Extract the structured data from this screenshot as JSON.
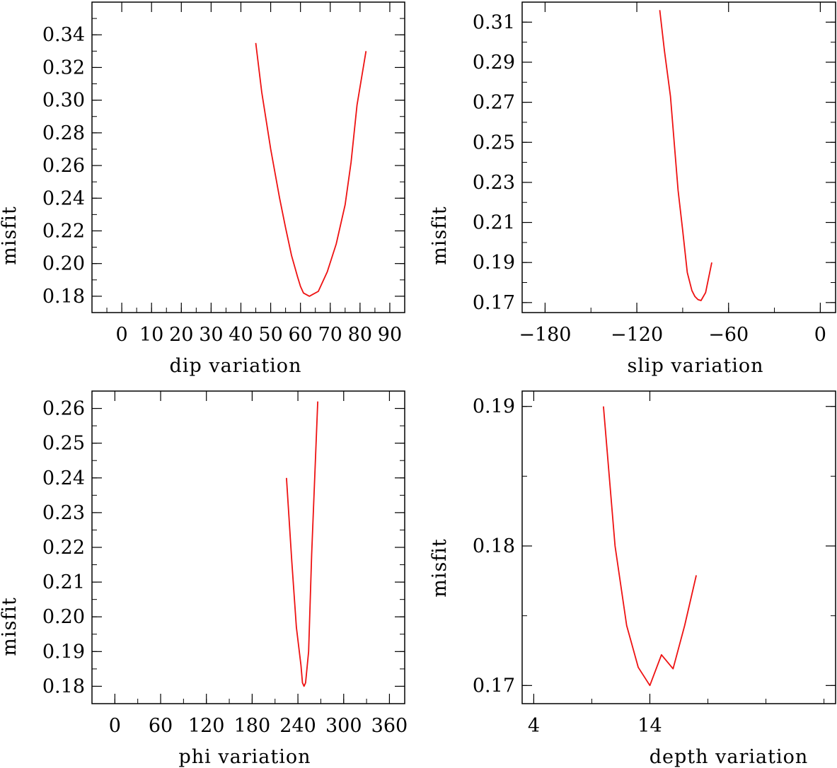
{
  "line_color": "#ee1111",
  "chart_data": [
    {
      "type": "line",
      "xlabel": "dip    variation",
      "ylabel": "misfit",
      "xlim": [
        -10,
        95
      ],
      "ylim": [
        0.17,
        0.36
      ],
      "xticks": [
        0,
        10,
        20,
        30,
        40,
        50,
        60,
        70,
        80,
        90
      ],
      "xtick_labels": [
        "0",
        "10",
        "20",
        "30",
        "40",
        "50",
        "60",
        "70",
        "80",
        "90"
      ],
      "yticks": [
        0.18,
        0.2,
        0.22,
        0.24,
        0.26,
        0.28,
        0.3,
        0.32,
        0.34
      ],
      "ytick_labels": [
        "0.18",
        "0.20",
        "0.22",
        "0.24",
        "0.26",
        "0.28",
        "0.30",
        "0.32",
        "0.34"
      ],
      "series": [
        {
          "name": "dip",
          "x": [
            45,
            47,
            50,
            53,
            55,
            57,
            59,
            60,
            61,
            63,
            64,
            66,
            69,
            72,
            75,
            77,
            79,
            82
          ],
          "y": [
            0.335,
            0.305,
            0.27,
            0.24,
            0.222,
            0.205,
            0.192,
            0.186,
            0.182,
            0.18,
            0.181,
            0.183,
            0.195,
            0.212,
            0.236,
            0.262,
            0.297,
            0.33
          ]
        }
      ]
    },
    {
      "type": "line",
      "xlabel": "slip   variation",
      "ylabel": "misfit",
      "xlim": [
        -195,
        10
      ],
      "ylim": [
        0.165,
        0.32
      ],
      "xticks": [
        -180,
        -120,
        -60,
        0
      ],
      "xtick_labels": [
        "−180",
        "−120",
        "−60",
        "0"
      ],
      "yticks": [
        0.17,
        0.19,
        0.21,
        0.23,
        0.25,
        0.27,
        0.29,
        0.31
      ],
      "ytick_labels": [
        "0.17",
        "0.19",
        "0.21",
        "0.23",
        "0.25",
        "0.27",
        "0.29",
        "0.31"
      ],
      "series": [
        {
          "name": "slip",
          "x": [
            -105,
            -102,
            -98,
            -93,
            -90,
            -87,
            -84,
            -82,
            -80,
            -78,
            -75,
            -71
          ],
          "y": [
            0.316,
            0.296,
            0.273,
            0.226,
            0.206,
            0.185,
            0.176,
            0.173,
            0.1715,
            0.171,
            0.175,
            0.19
          ]
        }
      ]
    },
    {
      "type": "line",
      "xlabel": "phi    variation",
      "ylabel": "misfit",
      "xlim": [
        -30,
        380
      ],
      "ylim": [
        0.175,
        0.265
      ],
      "xticks": [
        0,
        60,
        120,
        180,
        240,
        300,
        360
      ],
      "xtick_labels": [
        "0",
        "60",
        "120",
        "180",
        "240",
        "300",
        "360"
      ],
      "yticks": [
        0.18,
        0.19,
        0.2,
        0.21,
        0.22,
        0.23,
        0.24,
        0.25,
        0.26
      ],
      "ytick_labels": [
        "0.18",
        "0.19",
        "0.20",
        "0.21",
        "0.22",
        "0.23",
        "0.24",
        "0.25",
        "0.26"
      ],
      "series": [
        {
          "name": "phi",
          "x": [
            225,
            232,
            238,
            244,
            246,
            248,
            250,
            254,
            258,
            266
          ],
          "y": [
            0.24,
            0.216,
            0.197,
            0.186,
            0.181,
            0.18,
            0.181,
            0.19,
            0.218,
            0.262
          ]
        }
      ]
    },
    {
      "type": "line",
      "xlabel": "depth  variation",
      "ylabel": "misfit",
      "xlim": [
        3,
        30
      ],
      "ylim": [
        0.1687,
        0.1911
      ],
      "xticks": [
        4,
        14
      ],
      "xtick_labels": [
        "4",
        "14"
      ],
      "yticks": [
        0.17,
        0.18,
        0.19
      ],
      "ytick_labels": [
        "0.17",
        "0.18",
        "0.19"
      ],
      "series": [
        {
          "name": "depth",
          "x": [
            10,
            11,
            12,
            13,
            14,
            15,
            16,
            17,
            18
          ],
          "y": [
            0.19,
            0.18,
            0.1743,
            0.1713,
            0.17,
            0.1722,
            0.1712,
            0.1743,
            0.1779
          ]
        }
      ]
    }
  ]
}
